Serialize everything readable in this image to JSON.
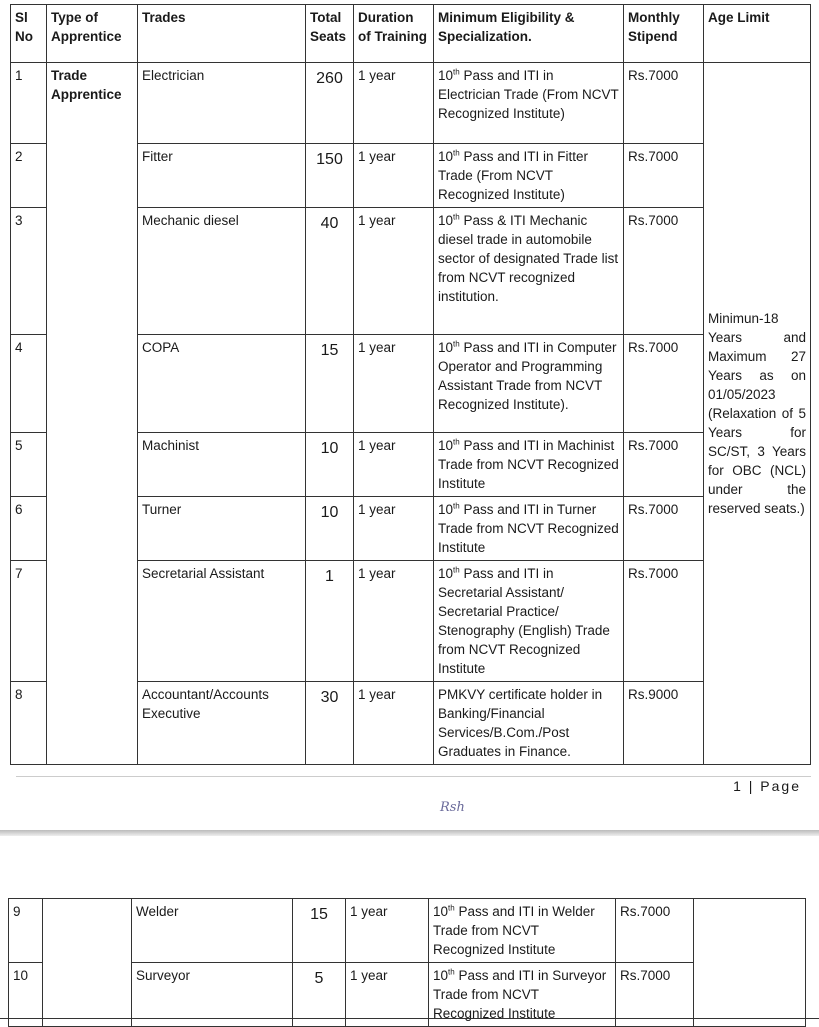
{
  "headers": [
    "Sl No",
    "Type of Apprentice",
    "Trades",
    "Total Seats",
    "Duration of Training",
    "Minimum Eligibility & Specialization.",
    "Monthly Stipend",
    "Age Limit"
  ],
  "type_of_apprentice": "Trade Apprentice",
  "age_limit": "Minimun-18 Years and Maximum 27 Years as on 01/05/2023 (Relaxation of 5 Years for SC/ST, 3 Years for OBC (NCL) under the reserved seats.)",
  "rows": [
    {
      "sl": "1",
      "trade": "Electrician",
      "seats": "260",
      "duration": "1 year",
      "elig_pre": "10",
      "elig_sup": "th",
      "elig": " Pass and ITI in Electrician Trade (From NCVT Recognized Institute)",
      "stipend": "Rs.7000"
    },
    {
      "sl": "2",
      "trade": "Fitter",
      "seats": "150",
      "duration": "1 year",
      "elig_pre": "10",
      "elig_sup": "th",
      "elig": " Pass and ITI in Fitter Trade (From NCVT Recognized Institute)",
      "stipend": "Rs.7000"
    },
    {
      "sl": "3",
      "trade": "Mechanic diesel",
      "seats": "40",
      "duration": "1 year",
      "elig_pre": "10",
      "elig_sup": "th",
      "elig": " Pass & ITI Mechanic diesel trade in automobile sector of designated Trade list from NCVT recognized institution.",
      "stipend": "Rs.7000"
    },
    {
      "sl": "4",
      "trade": "COPA",
      "seats": "15",
      "duration": "1 year",
      "elig_pre": "10",
      "elig_sup": "th",
      "elig": " Pass and ITI in Computer Operator and Programming Assistant Trade from NCVT Recognized Institute).",
      "stipend": "Rs.7000"
    },
    {
      "sl": "5",
      "trade": "Machinist",
      "seats": "10",
      "duration": "1 year",
      "elig_pre": "10",
      "elig_sup": "th",
      "elig": " Pass and ITI in Machinist Trade from NCVT Recognized Institute",
      "stipend": "Rs.7000"
    },
    {
      "sl": "6",
      "trade": "Turner",
      "seats": "10",
      "duration": "1 year",
      "elig_pre": "10",
      "elig_sup": "th",
      "elig": " Pass and ITI in Turner Trade from NCVT Recognized Institute",
      "stipend": "Rs.7000"
    },
    {
      "sl": "7",
      "trade": "Secretarial Assistant",
      "seats": "1",
      "duration": "1 year",
      "elig_pre": "10",
      "elig_sup": "th",
      "elig": " Pass and ITI in Secretarial Assistant/ Secretarial Practice/ Stenography (English) Trade from NCVT Recognized Institute",
      "stipend": "Rs.7000"
    },
    {
      "sl": "8",
      "trade": "Accountant/Accounts Executive",
      "seats": "30",
      "duration": "1 year",
      "elig_pre": "",
      "elig_sup": "",
      "elig": "PMKVY certificate holder in Banking/Financial Services/B.Com./Post Graduates in Finance.",
      "stipend": "Rs.9000"
    }
  ],
  "rows2": [
    {
      "sl": "9",
      "trade": "Welder",
      "seats": "15",
      "duration": "1 year",
      "elig_pre": "10",
      "elig_sup": "th",
      "elig": " Pass and ITI in Welder Trade from NCVT Recognized Institute",
      "stipend": "Rs.7000"
    },
    {
      "sl": "10",
      "trade": "Surveyor",
      "seats": "5",
      "duration": "1 year",
      "elig_pre": "10",
      "elig_sup": "th",
      "elig": " Pass and ITI in Surveyor Trade from NCVT Recognized Institute",
      "stipend": "Rs.7000"
    }
  ],
  "page_number": "1 | Page",
  "signature": "Rsh"
}
